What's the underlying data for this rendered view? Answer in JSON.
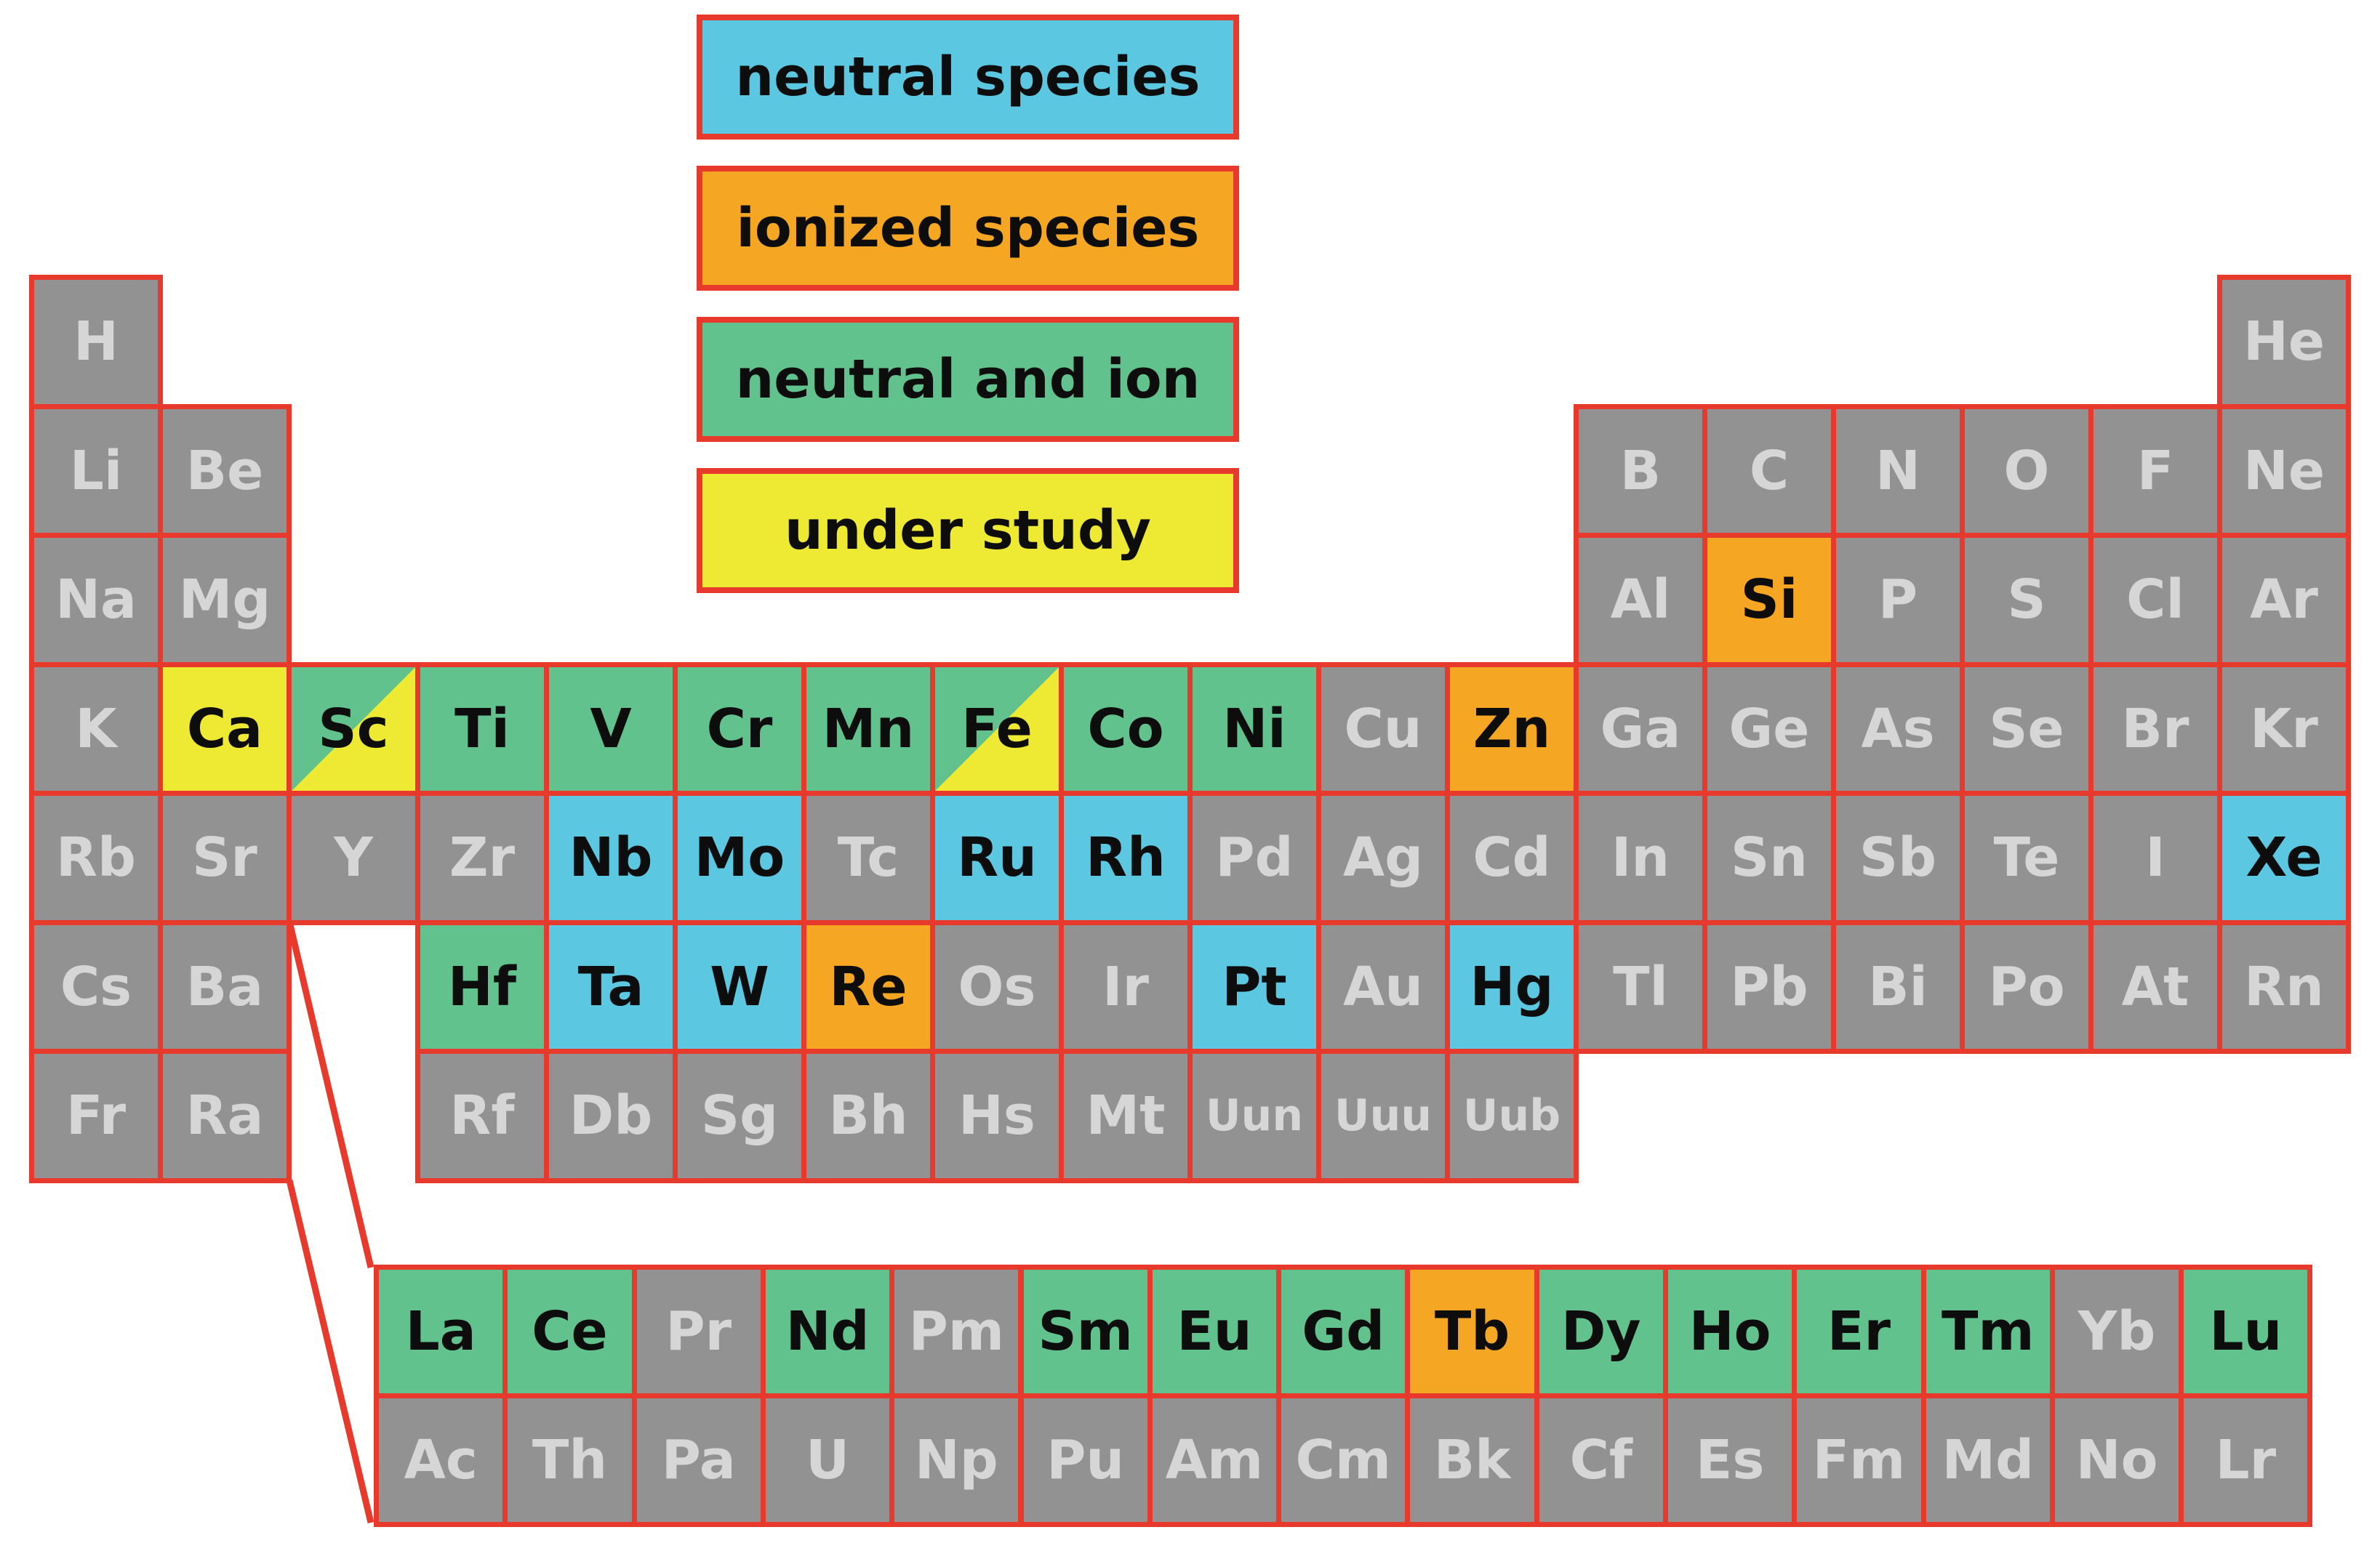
{
  "legend": [
    {
      "label": "neutral species",
      "category": "neutral",
      "color": "#5bc7e0"
    },
    {
      "label": "ionized species",
      "category": "ionized",
      "color": "#f5a623"
    },
    {
      "label": "neutral and ion",
      "category": "both",
      "color": "#62c28e"
    },
    {
      "label": "under study",
      "category": "study",
      "color": "#eeea33"
    }
  ],
  "colors": {
    "none": "#929292",
    "neutral": "#5bc7e0",
    "ionized": "#f5a623",
    "both": "#62c28e",
    "study": "#eeea33",
    "border": "#e8392d"
  },
  "elements": [
    {
      "symbol": "H",
      "row": 1,
      "col": 1,
      "category": "none"
    },
    {
      "symbol": "He",
      "row": 1,
      "col": 18,
      "category": "none"
    },
    {
      "symbol": "Li",
      "row": 2,
      "col": 1,
      "category": "none"
    },
    {
      "symbol": "Be",
      "row": 2,
      "col": 2,
      "category": "none"
    },
    {
      "symbol": "B",
      "row": 2,
      "col": 13,
      "category": "none"
    },
    {
      "symbol": "C",
      "row": 2,
      "col": 14,
      "category": "none"
    },
    {
      "symbol": "N",
      "row": 2,
      "col": 15,
      "category": "none"
    },
    {
      "symbol": "O",
      "row": 2,
      "col": 16,
      "category": "none"
    },
    {
      "symbol": "F",
      "row": 2,
      "col": 17,
      "category": "none"
    },
    {
      "symbol": "Ne",
      "row": 2,
      "col": 18,
      "category": "none"
    },
    {
      "symbol": "Na",
      "row": 3,
      "col": 1,
      "category": "none"
    },
    {
      "symbol": "Mg",
      "row": 3,
      "col": 2,
      "category": "none"
    },
    {
      "symbol": "Al",
      "row": 3,
      "col": 13,
      "category": "none"
    },
    {
      "symbol": "Si",
      "row": 3,
      "col": 14,
      "category": "ionized"
    },
    {
      "symbol": "P",
      "row": 3,
      "col": 15,
      "category": "none"
    },
    {
      "symbol": "S",
      "row": 3,
      "col": 16,
      "category": "none"
    },
    {
      "symbol": "Cl",
      "row": 3,
      "col": 17,
      "category": "none"
    },
    {
      "symbol": "Ar",
      "row": 3,
      "col": 18,
      "category": "none"
    },
    {
      "symbol": "K",
      "row": 4,
      "col": 1,
      "category": "none"
    },
    {
      "symbol": "Ca",
      "row": 4,
      "col": 2,
      "category": "study"
    },
    {
      "symbol": "Sc",
      "row": 4,
      "col": 3,
      "category": "both",
      "split": "study"
    },
    {
      "symbol": "Ti",
      "row": 4,
      "col": 4,
      "category": "both"
    },
    {
      "symbol": "V",
      "row": 4,
      "col": 5,
      "category": "both"
    },
    {
      "symbol": "Cr",
      "row": 4,
      "col": 6,
      "category": "both"
    },
    {
      "symbol": "Mn",
      "row": 4,
      "col": 7,
      "category": "both"
    },
    {
      "symbol": "Fe",
      "row": 4,
      "col": 8,
      "category": "both",
      "split": "study"
    },
    {
      "symbol": "Co",
      "row": 4,
      "col": 9,
      "category": "both"
    },
    {
      "symbol": "Ni",
      "row": 4,
      "col": 10,
      "category": "both"
    },
    {
      "symbol": "Cu",
      "row": 4,
      "col": 11,
      "category": "none"
    },
    {
      "symbol": "Zn",
      "row": 4,
      "col": 12,
      "category": "ionized"
    },
    {
      "symbol": "Ga",
      "row": 4,
      "col": 13,
      "category": "none"
    },
    {
      "symbol": "Ge",
      "row": 4,
      "col": 14,
      "category": "none"
    },
    {
      "symbol": "As",
      "row": 4,
      "col": 15,
      "category": "none"
    },
    {
      "symbol": "Se",
      "row": 4,
      "col": 16,
      "category": "none"
    },
    {
      "symbol": "Br",
      "row": 4,
      "col": 17,
      "category": "none"
    },
    {
      "symbol": "Kr",
      "row": 4,
      "col": 18,
      "category": "none"
    },
    {
      "symbol": "Rb",
      "row": 5,
      "col": 1,
      "category": "none"
    },
    {
      "symbol": "Sr",
      "row": 5,
      "col": 2,
      "category": "none"
    },
    {
      "symbol": "Y",
      "row": 5,
      "col": 3,
      "category": "none"
    },
    {
      "symbol": "Zr",
      "row": 5,
      "col": 4,
      "category": "none"
    },
    {
      "symbol": "Nb",
      "row": 5,
      "col": 5,
      "category": "neutral"
    },
    {
      "symbol": "Mo",
      "row": 5,
      "col": 6,
      "category": "neutral"
    },
    {
      "symbol": "Tc",
      "row": 5,
      "col": 7,
      "category": "none"
    },
    {
      "symbol": "Ru",
      "row": 5,
      "col": 8,
      "category": "neutral"
    },
    {
      "symbol": "Rh",
      "row": 5,
      "col": 9,
      "category": "neutral"
    },
    {
      "symbol": "Pd",
      "row": 5,
      "col": 10,
      "category": "none"
    },
    {
      "symbol": "Ag",
      "row": 5,
      "col": 11,
      "category": "none"
    },
    {
      "symbol": "Cd",
      "row": 5,
      "col": 12,
      "category": "none"
    },
    {
      "symbol": "In",
      "row": 5,
      "col": 13,
      "category": "none"
    },
    {
      "symbol": "Sn",
      "row": 5,
      "col": 14,
      "category": "none"
    },
    {
      "symbol": "Sb",
      "row": 5,
      "col": 15,
      "category": "none"
    },
    {
      "symbol": "Te",
      "row": 5,
      "col": 16,
      "category": "none"
    },
    {
      "symbol": "I",
      "row": 5,
      "col": 17,
      "category": "none"
    },
    {
      "symbol": "Xe",
      "row": 5,
      "col": 18,
      "category": "neutral"
    },
    {
      "symbol": "Cs",
      "row": 6,
      "col": 1,
      "category": "none"
    },
    {
      "symbol": "Ba",
      "row": 6,
      "col": 2,
      "category": "none"
    },
    {
      "symbol": "Hf",
      "row": 6,
      "col": 4,
      "category": "both"
    },
    {
      "symbol": "Ta",
      "row": 6,
      "col": 5,
      "category": "neutral"
    },
    {
      "symbol": "W",
      "row": 6,
      "col": 6,
      "category": "neutral"
    },
    {
      "symbol": "Re",
      "row": 6,
      "col": 7,
      "category": "ionized"
    },
    {
      "symbol": "Os",
      "row": 6,
      "col": 8,
      "category": "none"
    },
    {
      "symbol": "Ir",
      "row": 6,
      "col": 9,
      "category": "none"
    },
    {
      "symbol": "Pt",
      "row": 6,
      "col": 10,
      "category": "neutral"
    },
    {
      "symbol": "Au",
      "row": 6,
      "col": 11,
      "category": "none"
    },
    {
      "symbol": "Hg",
      "row": 6,
      "col": 12,
      "category": "neutral"
    },
    {
      "symbol": "Tl",
      "row": 6,
      "col": 13,
      "category": "none"
    },
    {
      "symbol": "Pb",
      "row": 6,
      "col": 14,
      "category": "none"
    },
    {
      "symbol": "Bi",
      "row": 6,
      "col": 15,
      "category": "none"
    },
    {
      "symbol": "Po",
      "row": 6,
      "col": 16,
      "category": "none"
    },
    {
      "symbol": "At",
      "row": 6,
      "col": 17,
      "category": "none"
    },
    {
      "symbol": "Rn",
      "row": 6,
      "col": 18,
      "category": "none"
    },
    {
      "symbol": "Fr",
      "row": 7,
      "col": 1,
      "category": "none"
    },
    {
      "symbol": "Ra",
      "row": 7,
      "col": 2,
      "category": "none"
    },
    {
      "symbol": "Rf",
      "row": 7,
      "col": 4,
      "category": "none"
    },
    {
      "symbol": "Db",
      "row": 7,
      "col": 5,
      "category": "none"
    },
    {
      "symbol": "Sg",
      "row": 7,
      "col": 6,
      "category": "none"
    },
    {
      "symbol": "Bh",
      "row": 7,
      "col": 7,
      "category": "none"
    },
    {
      "symbol": "Hs",
      "row": 7,
      "col": 8,
      "category": "none"
    },
    {
      "symbol": "Mt",
      "row": 7,
      "col": 9,
      "category": "none"
    },
    {
      "symbol": "Uun",
      "row": 7,
      "col": 10,
      "category": "none"
    },
    {
      "symbol": "Uuu",
      "row": 7,
      "col": 11,
      "category": "none"
    },
    {
      "symbol": "Uub",
      "row": 7,
      "col": 12,
      "category": "none"
    }
  ],
  "f_block": [
    {
      "symbol": "La",
      "row": 1,
      "col": 1,
      "category": "both"
    },
    {
      "symbol": "Ce",
      "row": 1,
      "col": 2,
      "category": "both"
    },
    {
      "symbol": "Pr",
      "row": 1,
      "col": 3,
      "category": "none"
    },
    {
      "symbol": "Nd",
      "row": 1,
      "col": 4,
      "category": "both"
    },
    {
      "symbol": "Pm",
      "row": 1,
      "col": 5,
      "category": "none"
    },
    {
      "symbol": "Sm",
      "row": 1,
      "col": 6,
      "category": "both"
    },
    {
      "symbol": "Eu",
      "row": 1,
      "col": 7,
      "category": "both"
    },
    {
      "symbol": "Gd",
      "row": 1,
      "col": 8,
      "category": "both"
    },
    {
      "symbol": "Tb",
      "row": 1,
      "col": 9,
      "category": "ionized"
    },
    {
      "symbol": "Dy",
      "row": 1,
      "col": 10,
      "category": "both"
    },
    {
      "symbol": "Ho",
      "row": 1,
      "col": 11,
      "category": "both"
    },
    {
      "symbol": "Er",
      "row": 1,
      "col": 12,
      "category": "both"
    },
    {
      "symbol": "Tm",
      "row": 1,
      "col": 13,
      "category": "both"
    },
    {
      "symbol": "Yb",
      "row": 1,
      "col": 14,
      "category": "none"
    },
    {
      "symbol": "Lu",
      "row": 1,
      "col": 15,
      "category": "both"
    },
    {
      "symbol": "Ac",
      "row": 2,
      "col": 1,
      "category": "none"
    },
    {
      "symbol": "Th",
      "row": 2,
      "col": 2,
      "category": "none"
    },
    {
      "symbol": "Pa",
      "row": 2,
      "col": 3,
      "category": "none"
    },
    {
      "symbol": "U",
      "row": 2,
      "col": 4,
      "category": "none"
    },
    {
      "symbol": "Np",
      "row": 2,
      "col": 5,
      "category": "none"
    },
    {
      "symbol": "Pu",
      "row": 2,
      "col": 6,
      "category": "none"
    },
    {
      "symbol": "Am",
      "row": 2,
      "col": 7,
      "category": "none"
    },
    {
      "symbol": "Cm",
      "row": 2,
      "col": 8,
      "category": "none"
    },
    {
      "symbol": "Bk",
      "row": 2,
      "col": 9,
      "category": "none"
    },
    {
      "symbol": "Cf",
      "row": 2,
      "col": 10,
      "category": "none"
    },
    {
      "symbol": "Es",
      "row": 2,
      "col": 11,
      "category": "none"
    },
    {
      "symbol": "Fm",
      "row": 2,
      "col": 12,
      "category": "none"
    },
    {
      "symbol": "Md",
      "row": 2,
      "col": 13,
      "category": "none"
    },
    {
      "symbol": "No",
      "row": 2,
      "col": 14,
      "category": "none"
    },
    {
      "symbol": "Lr",
      "row": 2,
      "col": 15,
      "category": "none"
    }
  ]
}
